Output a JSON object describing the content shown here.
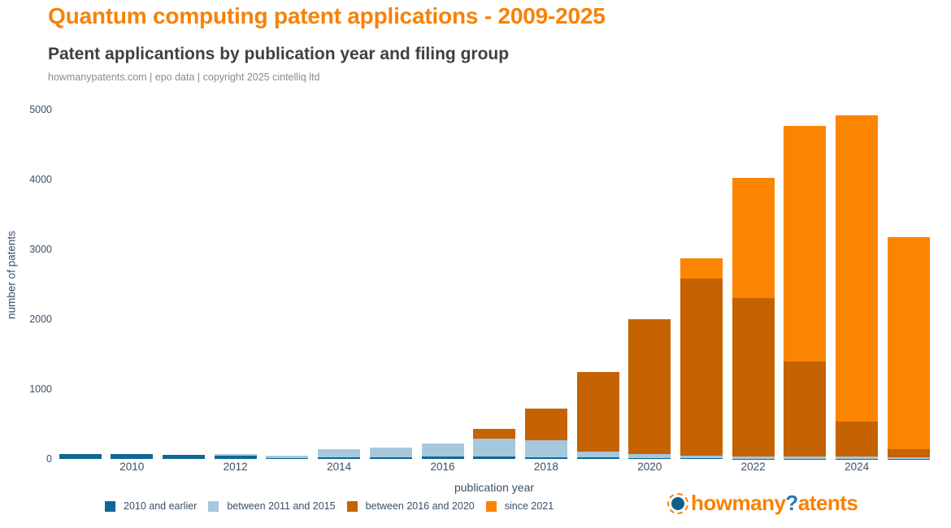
{
  "header": {
    "title": "Quantum computing patent applications - 2009-2025",
    "subtitle": "Patent applicantions by publication year and filing group",
    "source": "howmanypatents.com | epo data | copyright 2025 cintelliq ltd"
  },
  "chart_data": {
    "type": "bar",
    "stacked": true,
    "title": "Quantum computing patent applications - 2009-2025",
    "xlabel": "publication year",
    "ylabel": "number of patents",
    "ylim": [
      0,
      5000
    ],
    "yticks": [
      0,
      1000,
      2000,
      3000,
      4000,
      5000
    ],
    "xticks": [
      2010,
      2012,
      2014,
      2016,
      2018,
      2020,
      2022,
      2024
    ],
    "grid": false,
    "legend_position": "bottom",
    "categories": [
      2009,
      2010,
      2011,
      2012,
      2013,
      2014,
      2015,
      2016,
      2017,
      2018,
      2019,
      2020,
      2021,
      2022,
      2023,
      2024,
      2025
    ],
    "series": [
      {
        "name": "2010 and earlier",
        "color": "#0E6896",
        "values": [
          75,
          75,
          55,
          45,
          10,
          25,
          20,
          30,
          30,
          25,
          25,
          10,
          10,
          5,
          5,
          5,
          3
        ]
      },
      {
        "name": "between 2011 and 2015",
        "color": "#A6C8DC",
        "values": [
          0,
          0,
          0,
          30,
          35,
          110,
          145,
          190,
          260,
          245,
          80,
          55,
          35,
          35,
          30,
          25,
          22
        ]
      },
      {
        "name": "between 2016 and 2020",
        "color": "#C56202",
        "values": [
          0,
          0,
          0,
          0,
          0,
          0,
          0,
          0,
          140,
          455,
          1135,
          1935,
          2535,
          2265,
          1365,
          510,
          115
        ]
      },
      {
        "name": "since 2021",
        "color": "#FB8500",
        "values": [
          0,
          0,
          0,
          0,
          0,
          0,
          0,
          0,
          0,
          0,
          0,
          0,
          290,
          1720,
          3370,
          4380,
          3030
        ]
      }
    ],
    "totals": [
      75,
      75,
      55,
      75,
      45,
      135,
      165,
      220,
      430,
      725,
      1240,
      2000,
      2870,
      4025,
      4770,
      4920,
      3170
    ]
  },
  "footer": {
    "logo": {
      "part1": "howmany",
      "part2": "?",
      "part3": "atents"
    }
  },
  "colors": {
    "title_orange": "#F98100",
    "subtitle_gray": "#404040",
    "source_gray": "#8C8C8C",
    "axis_text": "#3A5068",
    "logo_orange": "#F98100",
    "logo_blue": "#2E74AE",
    "logo_circle_fill": "#0F5F8C"
  }
}
